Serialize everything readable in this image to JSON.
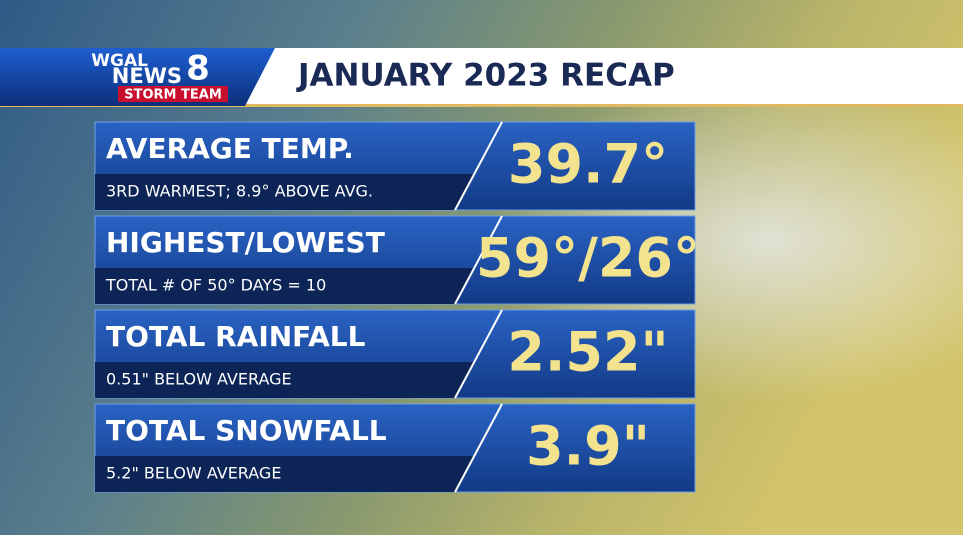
{
  "logo": {
    "station": "WGAL",
    "news": "NEWS",
    "channel": "8",
    "team": "STORM TEAM"
  },
  "title": "JANUARY 2023 RECAP",
  "rows": [
    {
      "label": "AVERAGE TEMP.",
      "detail": "3RD WARMEST; 8.9° ABOVE AVG.",
      "value": "39.7°"
    },
    {
      "label": "HIGHEST/LOWEST",
      "detail": "TOTAL # OF 50° DAYS =  10",
      "value": "59°/26°"
    },
    {
      "label": "TOTAL RAINFALL",
      "detail": "0.51\" BELOW AVERAGE",
      "value": "2.52\""
    },
    {
      "label": "TOTAL SNOWFALL",
      "detail": "5.2\" BELOW AVERAGE",
      "value": "3.9\""
    }
  ]
}
